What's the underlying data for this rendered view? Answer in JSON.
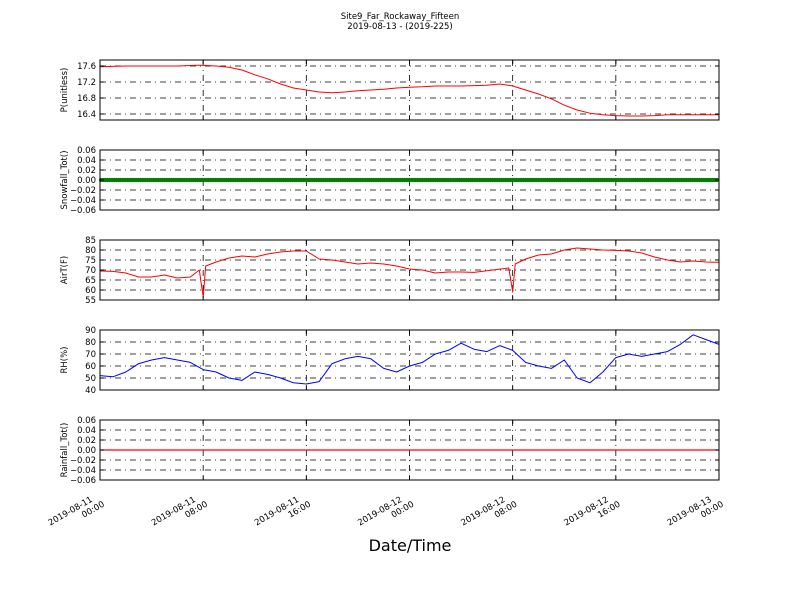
{
  "figure": {
    "title_line1": "Site9_Far_Rockaway_Fifteen",
    "title_line2": "2019-08-13 - (2019-225)",
    "xlabel": "Date/Time"
  },
  "chart_data": [
    {
      "type": "line",
      "ylabel": "P(unitless)",
      "color": "#ff0000",
      "ylim": [
        16.25,
        17.75
      ],
      "yticks": [
        16.4,
        16.8,
        17.2,
        17.6
      ],
      "ytick_labels": [
        "16.4",
        "16.8",
        "17.2",
        "17.6"
      ],
      "grid": true,
      "x": [
        0,
        2,
        4,
        6,
        7.5,
        8,
        9,
        10,
        11,
        12,
        13,
        14,
        15,
        16,
        17,
        18,
        19,
        20,
        21,
        22,
        23,
        24,
        25,
        26,
        27,
        28,
        30,
        31,
        32,
        33,
        34,
        35,
        36,
        37,
        38,
        39,
        40,
        41,
        42,
        43,
        44,
        45,
        46,
        47,
        48
      ],
      "values": [
        17.58,
        17.6,
        17.6,
        17.6,
        17.62,
        17.62,
        17.6,
        17.57,
        17.5,
        17.38,
        17.28,
        17.15,
        17.05,
        17.0,
        16.95,
        16.93,
        16.95,
        16.98,
        17.0,
        17.02,
        17.05,
        17.07,
        17.08,
        17.1,
        17.1,
        17.1,
        17.12,
        17.15,
        17.1,
        17.0,
        16.9,
        16.78,
        16.62,
        16.5,
        16.42,
        16.38,
        16.36,
        16.35,
        16.35,
        16.36,
        16.38,
        16.38,
        16.38,
        16.38,
        16.38
      ]
    },
    {
      "type": "scatter",
      "ylabel": "Snowfall_Tot()",
      "color": "#008000",
      "ylim": [
        -0.06,
        0.06
      ],
      "yticks": [
        -0.06,
        -0.04,
        -0.02,
        0.0,
        0.02,
        0.04,
        0.06
      ],
      "ytick_labels": [
        "−0.06",
        "−0.04",
        "−0.02",
        "0.00",
        "0.02",
        "0.04",
        "0.06"
      ],
      "grid": true,
      "constant_value": 0.0
    },
    {
      "type": "line",
      "ylabel": "AirT(F)",
      "color": "#ff0000",
      "ylim": [
        55,
        85
      ],
      "yticks": [
        55,
        60,
        65,
        70,
        75,
        80,
        85
      ],
      "ytick_labels": [
        "55",
        "60",
        "65",
        "70",
        "75",
        "80",
        "85"
      ],
      "grid": true,
      "x": [
        0,
        1,
        2,
        3,
        4,
        5,
        6,
        7,
        7.7,
        8,
        8.2,
        9,
        10,
        11,
        12,
        13,
        14,
        15,
        16,
        17,
        18,
        19,
        20,
        21,
        22,
        23,
        24,
        25,
        26,
        27,
        28,
        29,
        31.7,
        32,
        32.2,
        33,
        34,
        35,
        36,
        37,
        38,
        39,
        40,
        41,
        42,
        43,
        44,
        45,
        46,
        47,
        48
      ],
      "values": [
        69.5,
        69.3,
        68.5,
        66.5,
        66.5,
        67.5,
        66.0,
        66.5,
        70.0,
        56.5,
        72.0,
        74.0,
        76.0,
        77.0,
        76.5,
        78.0,
        79.0,
        79.5,
        79.5,
        75.5,
        75.0,
        74.0,
        73.0,
        73.5,
        73.0,
        72.0,
        70.5,
        70.0,
        68.5,
        69.0,
        69.0,
        68.8,
        71.0,
        59.0,
        73.0,
        75.5,
        77.5,
        78.0,
        80.0,
        81.0,
        80.5,
        80.0,
        79.8,
        79.5,
        78.5,
        76.5,
        75.0,
        74.0,
        74.5,
        74.0,
        73.8
      ]
    },
    {
      "type": "line",
      "ylabel": "RH(%)",
      "color": "#0000ff",
      "ylim": [
        40,
        90
      ],
      "yticks": [
        40,
        50,
        60,
        70,
        80,
        90
      ],
      "ytick_labels": [
        "40",
        "50",
        "60",
        "70",
        "80",
        "90"
      ],
      "grid": true,
      "x": [
        0,
        1,
        2,
        3,
        4,
        5,
        6,
        7,
        8,
        9,
        10,
        11,
        12,
        13,
        14,
        15,
        16,
        17,
        18,
        19,
        20,
        21,
        22,
        23,
        24,
        25,
        26,
        27,
        28,
        29,
        30,
        31,
        32,
        33,
        34,
        35,
        36,
        37,
        38,
        39,
        40,
        41,
        42,
        43,
        44,
        45,
        46,
        47,
        48
      ],
      "values": [
        52,
        51,
        55,
        62,
        65,
        67,
        65,
        63,
        57,
        55,
        50,
        48,
        55,
        53,
        50,
        46,
        45,
        47,
        62,
        66,
        68,
        66,
        58,
        55,
        60,
        63,
        70,
        73,
        79,
        74,
        72,
        77,
        73,
        63,
        60,
        58,
        65,
        50,
        46,
        55,
        67,
        70,
        68,
        70,
        72,
        78,
        86,
        82,
        78
      ]
    },
    {
      "type": "line",
      "ylabel": "Rainfall_Tot()",
      "color": "#ff0000",
      "ylim": [
        -0.06,
        0.06
      ],
      "yticks": [
        -0.06,
        -0.04,
        -0.02,
        0.0,
        0.02,
        0.04,
        0.06
      ],
      "ytick_labels": [
        "−0.06",
        "−0.04",
        "−0.02",
        "0.00",
        "0.02",
        "0.04",
        "0.06"
      ],
      "grid": true,
      "constant_value": 0.0
    }
  ],
  "x_axis": {
    "unit": "hours since 2019-08-11 00:00",
    "range": [
      0,
      48
    ],
    "ticks": [
      0,
      8,
      16,
      24,
      32,
      40,
      48
    ],
    "tick_labels": [
      [
        "2019-08-11",
        "00:00"
      ],
      [
        "2019-08-11",
        "08:00"
      ],
      [
        "2019-08-11",
        "16:00"
      ],
      [
        "2019-08-12",
        "00:00"
      ],
      [
        "2019-08-12",
        "08:00"
      ],
      [
        "2019-08-12",
        "16:00"
      ],
      [
        "2019-08-13",
        "00:00"
      ]
    ]
  }
}
